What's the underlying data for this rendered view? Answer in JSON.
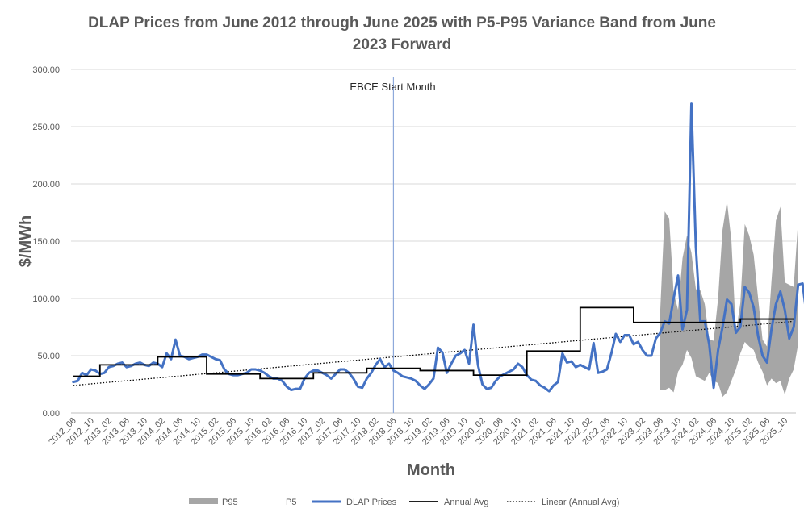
{
  "chart_data": {
    "type": "line",
    "title": "DLAP Prices from June 2012 through June 2025 with P5-P95 Variance Band from June 2023 Forward",
    "title_lines": [
      "DLAP Prices from June 2012 through June 2025 with P5-P95 Variance Band from June",
      "2023 Forward"
    ],
    "xlabel": "Month",
    "ylabel": "$/MWh",
    "ylim": [
      0,
      300
    ],
    "y_ticks": [
      "0.00",
      "50.00",
      "100.00",
      "150.00",
      "200.00",
      "250.00",
      "300.00"
    ],
    "grid": true,
    "legend_position": "bottom",
    "annotation": {
      "text": "EBCE Start Month",
      "x": "2018_06"
    },
    "x_tick_labels": [
      "2012_06",
      "2012_10",
      "2013_02",
      "2013_06",
      "2013_10",
      "2014_02",
      "2014_06",
      "2014_10",
      "2015_02",
      "2015_06",
      "2015_10",
      "2016_02",
      "2016_06",
      "2016_10",
      "2017_02",
      "2017_06",
      "2017_10",
      "2018_02",
      "2018_06",
      "2018_10",
      "2019_02",
      "2019_06",
      "2019_10",
      "2020_02",
      "2020_06",
      "2020_10",
      "2021_02",
      "2021_06",
      "2021_10",
      "2022_02",
      "2022_06",
      "2022_10",
      "2023_02",
      "2023_06",
      "2023_10",
      "2024_02",
      "2024_06",
      "2024_10",
      "2025_02",
      "2025_06",
      "2025_10"
    ],
    "x_start": "2012_06",
    "colors": {
      "dlap": "#4472C4",
      "annual_avg": "#000000",
      "linear": "#000000",
      "band": "#A6A6A6",
      "annotation_line": "#8EA9DB",
      "grid": "#D9D9D9"
    },
    "series": [
      {
        "name": "P95",
        "style": "area",
        "values_from_2023_06": [
          90,
          176,
          170,
          105,
          90,
          135,
          155,
          140,
          108,
          107,
          95,
          64,
          63,
          100,
          160,
          185,
          150,
          70,
          96,
          165,
          155,
          138,
          100,
          64,
          58,
          115,
          168,
          180,
          114,
          112,
          110,
          168
        ]
      },
      {
        "name": "P5",
        "style": "area-base",
        "values_from_2023_06": [
          20,
          20,
          22,
          18,
          36,
          42,
          55,
          48,
          32,
          30,
          28,
          35,
          28,
          26,
          14,
          18,
          28,
          38,
          52,
          62,
          58,
          55,
          44,
          36,
          24,
          30,
          26,
          28,
          16,
          30,
          38,
          60
        ]
      },
      {
        "name": "DLAP Prices",
        "style": "line",
        "values": [
          27,
          28,
          35,
          33,
          38,
          37,
          34,
          35,
          40,
          41,
          43,
          44,
          40,
          41,
          43,
          44,
          42,
          41,
          44,
          43,
          40,
          52,
          47,
          64,
          50,
          49,
          47,
          48,
          49,
          51,
          51,
          49,
          47,
          46,
          38,
          34,
          33,
          33,
          34,
          35,
          38,
          38,
          37,
          35,
          32,
          30,
          30,
          28,
          23,
          20,
          21,
          21,
          30,
          35,
          37,
          37,
          35,
          33,
          30,
          34,
          38,
          38,
          35,
          30,
          23,
          22,
          30,
          35,
          42,
          47,
          40,
          43,
          37,
          35,
          32,
          31,
          30,
          28,
          24,
          21,
          25,
          30,
          57,
          53,
          35,
          43,
          50,
          52,
          55,
          43,
          77,
          42,
          25,
          21,
          22,
          28,
          32,
          34,
          36,
          38,
          43,
          40,
          33,
          29,
          28,
          24,
          22,
          19,
          24,
          27,
          52,
          44,
          45,
          40,
          42,
          40,
          38,
          61,
          35,
          36,
          38,
          52,
          69,
          62,
          68,
          68,
          60,
          62,
          55,
          50,
          50,
          65,
          70,
          80,
          78,
          100,
          120,
          73,
          90,
          270,
          145,
          80,
          80,
          60,
          22,
          55,
          75,
          99,
          95,
          70,
          75,
          110,
          105,
          92,
          67,
          50,
          44,
          73,
          95,
          106,
          90,
          65,
          75,
          112,
          113,
          82,
          72,
          48,
          43,
          72,
          96,
          100,
          97,
          75,
          77,
          114
        ]
      },
      {
        "name": "Annual Avg",
        "style": "step",
        "segments": [
          {
            "from": "2012_06",
            "to": "2012_12",
            "value": 32
          },
          {
            "from": "2012_12",
            "to": "2014_01",
            "value": 42
          },
          {
            "from": "2014_01",
            "to": "2014_12",
            "value": 49
          },
          {
            "from": "2014_12",
            "to": "2015_12",
            "value": 34
          },
          {
            "from": "2015_12",
            "to": "2016_12",
            "value": 30
          },
          {
            "from": "2016_12",
            "to": "2017_12",
            "value": 35
          },
          {
            "from": "2017_12",
            "to": "2018_12",
            "value": 39
          },
          {
            "from": "2018_12",
            "to": "2019_12",
            "value": 37
          },
          {
            "from": "2019_12",
            "to": "2020_12",
            "value": 33
          },
          {
            "from": "2020_12",
            "to": "2021_12",
            "value": 54
          },
          {
            "from": "2021_12",
            "to": "2022_12",
            "value": 92
          },
          {
            "from": "2022_12",
            "to": "2024_12",
            "value": 79
          },
          {
            "from": "2024_12",
            "to": "2025_12",
            "value": 82
          }
        ]
      },
      {
        "name": "Linear (Annual Avg)",
        "style": "dotted",
        "from": {
          "x": "2012_06",
          "y": 24
        },
        "to": {
          "x": "2025_12",
          "y": 80
        }
      }
    ],
    "legend": [
      "P95",
      "P5",
      "DLAP Prices",
      "Annual Avg",
      "Linear (Annual Avg)"
    ]
  }
}
